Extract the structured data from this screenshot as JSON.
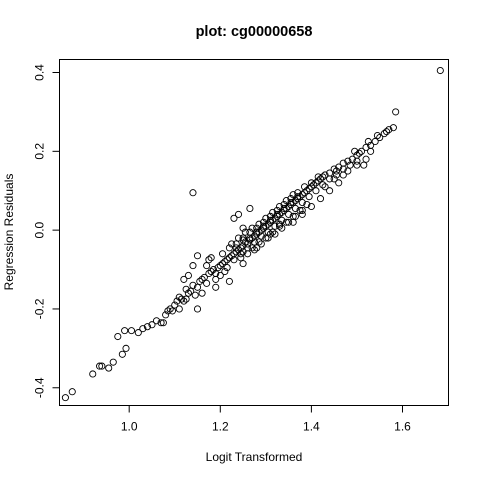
{
  "chart_data": {
    "type": "scatter",
    "title": "plot: cg00000658",
    "xlabel": "Logit Transformed",
    "ylabel": "Regression Residuals",
    "xlim": [
      0.847,
      1.701
    ],
    "ylim": [
      -0.445,
      0.433
    ],
    "xticks": [
      1.0,
      1.2,
      1.4,
      1.6
    ],
    "xtick_labels": [
      "1.0",
      "1.2",
      "1.4",
      "1.6"
    ],
    "yticks": [
      -0.4,
      -0.2,
      0.0,
      0.2,
      0.4
    ],
    "ytick_labels": [
      "-0.4",
      "-0.2",
      "0.0",
      "0.2",
      "0.4"
    ],
    "grid": false,
    "marker": "open-circle",
    "points": [
      [
        0.86,
        -0.425
      ],
      [
        0.875,
        -0.41
      ],
      [
        0.92,
        -0.365
      ],
      [
        0.935,
        -0.345
      ],
      [
        0.94,
        -0.345
      ],
      [
        0.955,
        -0.35
      ],
      [
        0.965,
        -0.335
      ],
      [
        0.975,
        -0.27
      ],
      [
        0.985,
        -0.315
      ],
      [
        0.99,
        -0.255
      ],
      [
        0.993,
        -0.3
      ],
      [
        1.005,
        -0.255
      ],
      [
        1.02,
        -0.26
      ],
      [
        1.03,
        -0.25
      ],
      [
        1.04,
        -0.245
      ],
      [
        1.05,
        -0.24
      ],
      [
        1.06,
        -0.23
      ],
      [
        1.07,
        -0.235
      ],
      [
        1.075,
        -0.235
      ],
      [
        1.08,
        -0.215
      ],
      [
        1.085,
        -0.205
      ],
      [
        1.09,
        -0.2
      ],
      [
        1.095,
        -0.205
      ],
      [
        1.1,
        -0.19
      ],
      [
        1.105,
        -0.18
      ],
      [
        1.11,
        -0.17
      ],
      [
        1.115,
        -0.175
      ],
      [
        1.12,
        -0.18
      ],
      [
        1.125,
        -0.15
      ],
      [
        1.13,
        -0.16
      ],
      [
        1.135,
        -0.155
      ],
      [
        1.14,
        -0.14
      ],
      [
        1.145,
        -0.165
      ],
      [
        1.15,
        -0.145
      ],
      [
        1.155,
        -0.13
      ],
      [
        1.16,
        -0.125
      ],
      [
        1.165,
        -0.12
      ],
      [
        1.17,
        -0.135
      ],
      [
        1.175,
        -0.11
      ],
      [
        1.18,
        -0.105
      ],
      [
        1.185,
        -0.1
      ],
      [
        1.19,
        -0.11
      ],
      [
        1.195,
        -0.095
      ],
      [
        1.2,
        -0.09
      ],
      [
        1.205,
        -0.085
      ],
      [
        1.21,
        -0.08
      ],
      [
        1.215,
        -0.075
      ],
      [
        1.22,
        -0.07
      ],
      [
        1.225,
        -0.065
      ],
      [
        1.23,
        -0.06
      ],
      [
        1.235,
        -0.055
      ],
      [
        1.24,
        -0.05
      ],
      [
        1.245,
        -0.045
      ],
      [
        1.25,
        -0.04
      ],
      [
        1.255,
        -0.03
      ],
      [
        1.26,
        -0.035
      ],
      [
        1.265,
        -0.025
      ],
      [
        1.27,
        -0.02
      ],
      [
        1.275,
        -0.015
      ],
      [
        1.28,
        -0.01
      ],
      [
        1.285,
        -0.005
      ],
      [
        1.29,
        0.0
      ],
      [
        1.295,
        0.005
      ],
      [
        1.3,
        0.01
      ],
      [
        1.305,
        0.015
      ],
      [
        1.31,
        0.02
      ],
      [
        1.315,
        0.025
      ],
      [
        1.32,
        0.03
      ],
      [
        1.325,
        0.035
      ],
      [
        1.33,
        0.04
      ],
      [
        1.335,
        0.045
      ],
      [
        1.34,
        0.05
      ],
      [
        1.345,
        0.055
      ],
      [
        1.35,
        0.06
      ],
      [
        1.355,
        0.065
      ],
      [
        1.36,
        0.07
      ],
      [
        1.365,
        0.075
      ],
      [
        1.37,
        0.08
      ],
      [
        1.375,
        0.085
      ],
      [
        1.38,
        0.09
      ],
      [
        1.385,
        0.095
      ],
      [
        1.39,
        0.1
      ],
      [
        1.395,
        0.105
      ],
      [
        1.4,
        0.11
      ],
      [
        1.405,
        0.115
      ],
      [
        1.41,
        0.12
      ],
      [
        1.415,
        0.125
      ],
      [
        1.42,
        0.13
      ],
      [
        1.425,
        0.135
      ],
      [
        1.43,
        0.14
      ],
      [
        1.44,
        0.145
      ],
      [
        1.45,
        0.155
      ],
      [
        1.46,
        0.16
      ],
      [
        1.47,
        0.17
      ],
      [
        1.48,
        0.175
      ],
      [
        1.49,
        0.18
      ],
      [
        1.5,
        0.19
      ],
      [
        1.51,
        0.2
      ],
      [
        1.52,
        0.21
      ],
      [
        1.53,
        0.215
      ],
      [
        1.54,
        0.225
      ],
      [
        1.55,
        0.235
      ],
      [
        1.56,
        0.245
      ],
      [
        1.57,
        0.255
      ],
      [
        1.58,
        0.26
      ],
      [
        1.585,
        0.3
      ],
      [
        1.683,
        0.405
      ],
      [
        1.215,
        -0.095
      ],
      [
        1.23,
        -0.075
      ],
      [
        1.245,
        -0.06
      ],
      [
        1.26,
        -0.045
      ],
      [
        1.275,
        -0.03
      ],
      [
        1.29,
        -0.015
      ],
      [
        1.305,
        -0.005
      ],
      [
        1.32,
        0.01
      ],
      [
        1.335,
        0.025
      ],
      [
        1.35,
        0.04
      ],
      [
        1.365,
        0.055
      ],
      [
        1.38,
        0.07
      ],
      [
        1.395,
        0.085
      ],
      [
        1.41,
        0.1
      ],
      [
        1.425,
        0.115
      ],
      [
        1.44,
        0.13
      ],
      [
        1.455,
        0.14
      ],
      [
        1.47,
        0.155
      ],
      [
        1.485,
        0.165
      ],
      [
        1.5,
        0.175
      ],
      [
        1.205,
        -0.06
      ],
      [
        1.22,
        -0.045
      ],
      [
        1.235,
        -0.035
      ],
      [
        1.25,
        -0.02
      ],
      [
        1.265,
        -0.005
      ],
      [
        1.28,
        0.005
      ],
      [
        1.295,
        0.02
      ],
      [
        1.31,
        0.035
      ],
      [
        1.325,
        0.05
      ],
      [
        1.34,
        0.065
      ],
      [
        1.355,
        0.08
      ],
      [
        1.37,
        0.095
      ],
      [
        1.385,
        0.11
      ],
      [
        1.4,
        0.12
      ],
      [
        1.415,
        0.135
      ],
      [
        1.245,
        -0.07
      ],
      [
        1.26,
        -0.06
      ],
      [
        1.275,
        -0.05
      ],
      [
        1.29,
        -0.035
      ],
      [
        1.305,
        -0.02
      ],
      [
        1.32,
        -0.01
      ],
      [
        1.335,
        0.005
      ],
      [
        1.35,
        0.02
      ],
      [
        1.365,
        0.035
      ],
      [
        1.38,
        0.05
      ],
      [
        1.25,
        -0.055
      ],
      [
        1.27,
        -0.045
      ],
      [
        1.285,
        -0.03
      ],
      [
        1.3,
        -0.02
      ],
      [
        1.315,
        -0.005
      ],
      [
        1.33,
        0.01
      ],
      [
        1.345,
        0.02
      ],
      [
        1.36,
        0.035
      ],
      [
        1.375,
        0.05
      ],
      [
        1.39,
        0.065
      ],
      [
        1.235,
        -0.045
      ],
      [
        1.25,
        -0.025
      ],
      [
        1.265,
        -0.02
      ],
      [
        1.28,
        -0.005
      ],
      [
        1.295,
        0.01
      ],
      [
        1.31,
        0.025
      ],
      [
        1.325,
        0.04
      ],
      [
        1.34,
        0.055
      ],
      [
        1.355,
        0.07
      ],
      [
        1.37,
        0.085
      ],
      [
        1.225,
        -0.035
      ],
      [
        1.24,
        -0.02
      ],
      [
        1.255,
        -0.005
      ],
      [
        1.27,
        0.005
      ],
      [
        1.285,
        0.015
      ],
      [
        1.3,
        0.03
      ],
      [
        1.315,
        0.045
      ],
      [
        1.33,
        0.06
      ],
      [
        1.345,
        0.075
      ],
      [
        1.36,
        0.09
      ],
      [
        1.14,
        0.095
      ],
      [
        1.265,
        0.055
      ],
      [
        1.24,
        0.04
      ],
      [
        1.25,
        0.005
      ],
      [
        1.23,
        0.03
      ],
      [
        1.15,
        -0.065
      ],
      [
        1.14,
        -0.09
      ],
      [
        1.17,
        -0.09
      ],
      [
        1.175,
        -0.075
      ],
      [
        1.18,
        -0.07
      ],
      [
        1.16,
        -0.16
      ],
      [
        1.19,
        -0.145
      ],
      [
        1.21,
        -0.105
      ],
      [
        1.2,
        -0.115
      ],
      [
        1.19,
        -0.125
      ],
      [
        1.12,
        -0.125
      ],
      [
        1.13,
        -0.115
      ],
      [
        1.125,
        -0.175
      ],
      [
        1.11,
        -0.2
      ],
      [
        1.15,
        -0.2
      ],
      [
        1.22,
        -0.13
      ],
      [
        1.25,
        -0.085
      ],
      [
        1.28,
        -0.045
      ],
      [
        1.31,
        -0.01
      ],
      [
        1.33,
        0.015
      ],
      [
        1.36,
        0.02
      ],
      [
        1.38,
        0.04
      ],
      [
        1.4,
        0.06
      ],
      [
        1.42,
        0.08
      ],
      [
        1.44,
        0.1
      ],
      [
        1.46,
        0.12
      ],
      [
        1.48,
        0.15
      ],
      [
        1.5,
        0.165
      ],
      [
        1.52,
        0.18
      ],
      [
        1.515,
        0.165
      ],
      [
        1.47,
        0.14
      ],
      [
        1.45,
        0.13
      ],
      [
        1.43,
        0.11
      ],
      [
        1.455,
        0.15
      ],
      [
        1.53,
        0.2
      ],
      [
        1.505,
        0.195
      ],
      [
        1.495,
        0.2
      ],
      [
        1.525,
        0.225
      ],
      [
        1.545,
        0.24
      ],
      [
        1.565,
        0.25
      ]
    ]
  }
}
